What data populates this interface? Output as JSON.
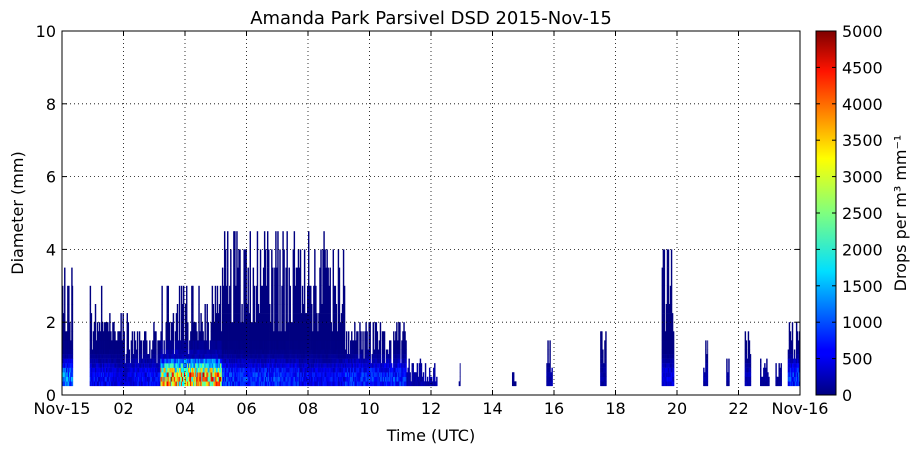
{
  "chart_data": {
    "type": "heatmap",
    "title": "Amanda Park Parsivel DSD 2015-Nov-15",
    "xlabel": "Time (UTC)",
    "ylabel": "Diameter (mm)",
    "colorbar_label": "Drops per m³ mm⁻¹",
    "xlim": [
      0,
      24
    ],
    "ylim": [
      0,
      10
    ],
    "x_ticks": [
      0,
      2,
      4,
      6,
      8,
      10,
      12,
      14,
      16,
      18,
      20,
      22,
      24
    ],
    "x_tick_labels": [
      "Nov-15",
      "02",
      "04",
      "06",
      "08",
      "10",
      "12",
      "14",
      "16",
      "18",
      "20",
      "22",
      "Nov-16"
    ],
    "y_ticks": [
      0,
      2,
      4,
      6,
      8,
      10
    ],
    "y_tick_labels": [
      "0",
      "2",
      "4",
      "6",
      "8",
      "10"
    ],
    "colorbar_range": [
      0,
      5000
    ],
    "colorbar_ticks": [
      0,
      500,
      1000,
      1500,
      2000,
      2500,
      3000,
      3500,
      4000,
      4500,
      5000
    ],
    "colorbar_tick_labels": [
      "0",
      "500",
      "1000",
      "1500",
      "2000",
      "2500",
      "3000",
      "3500",
      "4000",
      "4500",
      "5000"
    ],
    "colormap": "jet",
    "grid": true,
    "rain_periods": [
      {
        "start": 0.0,
        "end": 0.35,
        "max_diameter": 3.5,
        "peak": 1800
      },
      {
        "start": 0.9,
        "end": 1.6,
        "max_diameter": 3.0,
        "peak": 900
      },
      {
        "start": 1.6,
        "end": 2.3,
        "max_diameter": 2.3,
        "peak": 700
      },
      {
        "start": 2.3,
        "end": 3.2,
        "max_diameter": 1.8,
        "peak": 900
      },
      {
        "start": 3.2,
        "end": 5.2,
        "max_diameter": 3.0,
        "peak": 5000
      },
      {
        "start": 5.2,
        "end": 7.7,
        "max_diameter": 4.4,
        "peak": 1200
      },
      {
        "start": 7.7,
        "end": 9.2,
        "max_diameter": 4.2,
        "peak": 900
      },
      {
        "start": 9.2,
        "end": 11.2,
        "max_diameter": 2.0,
        "peak": 1200
      },
      {
        "start": 11.2,
        "end": 12.2,
        "max_diameter": 0.9,
        "peak": 300
      },
      {
        "start": 12.9,
        "end": 12.95,
        "max_diameter": 0.9,
        "peak": 100
      },
      {
        "start": 14.6,
        "end": 14.8,
        "max_diameter": 0.6,
        "peak": 100
      },
      {
        "start": 15.75,
        "end": 15.95,
        "max_diameter": 1.6,
        "peak": 300
      },
      {
        "start": 17.5,
        "end": 17.7,
        "max_diameter": 1.8,
        "peak": 300
      },
      {
        "start": 19.5,
        "end": 19.9,
        "max_diameter": 4.2,
        "peak": 700
      },
      {
        "start": 20.85,
        "end": 21.0,
        "max_diameter": 1.5,
        "peak": 300
      },
      {
        "start": 21.6,
        "end": 21.7,
        "max_diameter": 1.1,
        "peak": 200
      },
      {
        "start": 22.2,
        "end": 22.4,
        "max_diameter": 1.9,
        "peak": 400
      },
      {
        "start": 22.7,
        "end": 23.0,
        "max_diameter": 1.1,
        "peak": 200
      },
      {
        "start": 23.2,
        "end": 23.4,
        "max_diameter": 1.3,
        "peak": 200
      },
      {
        "start": 23.6,
        "end": 24.0,
        "max_diameter": 2.0,
        "peak": 1300
      }
    ]
  }
}
